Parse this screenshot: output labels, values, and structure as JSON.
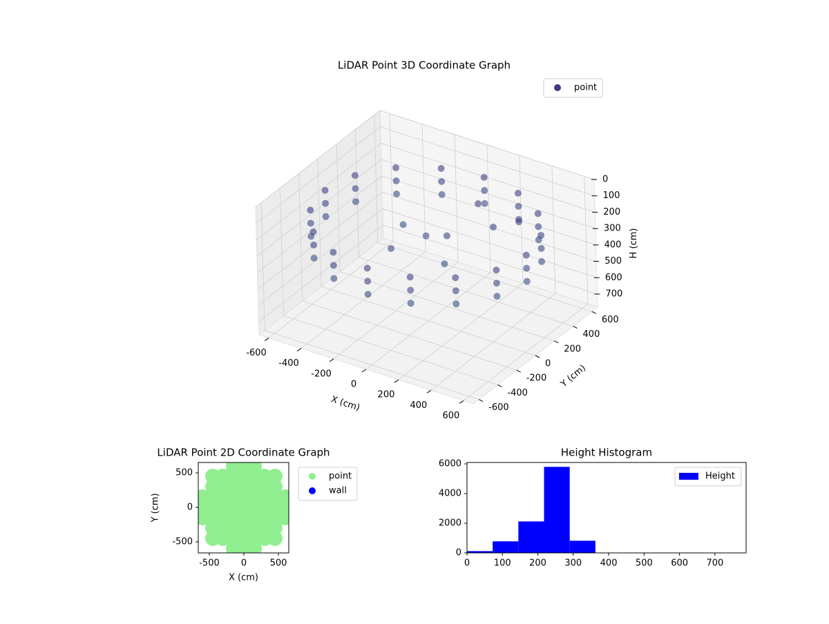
{
  "chart_data": [
    {
      "type": "scatter3d",
      "title": "LiDAR Point 3D Coordinate Graph",
      "xlabel": "X (cm)",
      "ylabel": "Y (cm)",
      "zlabel": "H (cm)",
      "xlim": [
        -660,
        660
      ],
      "ylim": [
        -660,
        660
      ],
      "zlim": [
        0,
        780
      ],
      "z_inverted": true,
      "xticks": [
        -600,
        -400,
        -200,
        0,
        200,
        400,
        600
      ],
      "yticks": [
        -600,
        -400,
        -200,
        0,
        200,
        400,
        600
      ],
      "zticks": [
        0,
        100,
        200,
        300,
        400,
        500,
        600,
        700
      ],
      "color_range": [
        "#46307e",
        "#2a788e"
      ],
      "legend": "upper right",
      "series": [
        {
          "name": "point",
          "color": "#453781",
          "x": [
            620,
            573,
            438,
            237,
            0,
            -237,
            -438,
            -573,
            -620,
            -573,
            -438,
            -237,
            0,
            237,
            438,
            573,
            620,
            573,
            438,
            237,
            0,
            -237,
            -438,
            -573,
            -620,
            -573,
            -438,
            -237,
            0,
            237,
            438,
            573,
            620,
            573,
            438,
            237,
            0,
            -237,
            -438,
            -573,
            -620,
            -573,
            -438,
            -237,
            0,
            237,
            438,
            573,
            100,
            -200,
            200,
            300,
            0,
            -100,
            400,
            150
          ],
          "y": [
            0,
            237,
            438,
            573,
            620,
            573,
            438,
            237,
            0,
            -237,
            -438,
            -573,
            -620,
            -573,
            -438,
            -237,
            0,
            237,
            438,
            573,
            620,
            573,
            438,
            237,
            0,
            -237,
            -438,
            -573,
            -620,
            -573,
            -438,
            -237,
            0,
            237,
            438,
            573,
            620,
            573,
            438,
            237,
            0,
            -237,
            -438,
            -573,
            -620,
            -573,
            -438,
            -237,
            50,
            100,
            -150,
            200,
            0,
            -200,
            300,
            300
          ],
          "z": [
            180,
            180,
            180,
            180,
            180,
            180,
            180,
            180,
            180,
            180,
            180,
            180,
            180,
            180,
            180,
            180,
            260,
            260,
            260,
            260,
            260,
            260,
            260,
            260,
            260,
            260,
            260,
            260,
            260,
            260,
            260,
            260,
            340,
            340,
            340,
            340,
            340,
            340,
            340,
            340,
            340,
            340,
            340,
            340,
            340,
            340,
            340,
            340,
            250,
            300,
            300,
            200,
            260,
            280,
            180,
            150
          ]
        }
      ]
    },
    {
      "type": "scatter",
      "title": "LiDAR Point 2D Coordinate Graph",
      "xlabel": "X (cm)",
      "ylabel": "Y (cm)",
      "xlim": [
        -660,
        650
      ],
      "ylim": [
        -660,
        650
      ],
      "xticks": [
        -500,
        0,
        500
      ],
      "yticks": [
        -500,
        0,
        500
      ],
      "legend": "outside right",
      "series": [
        {
          "name": "point",
          "color": "#90ee90",
          "x": [
            -150,
            0,
            150,
            -450,
            -300,
            -150,
            0,
            150,
            300,
            450,
            -450,
            -300,
            -150,
            0,
            150,
            300,
            450,
            -600,
            -450,
            -300,
            -150,
            0,
            150,
            300,
            450,
            600,
            -600,
            -450,
            -300,
            -150,
            0,
            150,
            300,
            450,
            600,
            -600,
            -450,
            -300,
            -150,
            0,
            150,
            300,
            450,
            600,
            -450,
            -300,
            -150,
            0,
            150,
            300,
            450,
            -450,
            -300,
            -150,
            0,
            150,
            300,
            450,
            -150,
            0,
            150
          ],
          "y": [
            600,
            600,
            600,
            450,
            450,
            450,
            450,
            450,
            450,
            450,
            300,
            300,
            300,
            300,
            300,
            300,
            300,
            150,
            150,
            150,
            150,
            150,
            150,
            150,
            150,
            150,
            0,
            0,
            0,
            0,
            0,
            0,
            0,
            0,
            0,
            -150,
            -150,
            -150,
            -150,
            -150,
            -150,
            -150,
            -150,
            -150,
            -300,
            -300,
            -300,
            -300,
            -300,
            -300,
            -300,
            -450,
            -450,
            -450,
            -450,
            -450,
            -450,
            -450,
            -600,
            -600,
            -600
          ]
        },
        {
          "name": "wall",
          "color": "#0000ff",
          "x": [],
          "y": []
        }
      ]
    },
    {
      "type": "histogram",
      "title": "Height Histogram",
      "xlim": [
        0,
        788
      ],
      "ylim": [
        0,
        6094
      ],
      "xticks": [
        0,
        100,
        200,
        300,
        400,
        500,
        600,
        700
      ],
      "yticks": [
        0,
        2000,
        4000,
        6000
      ],
      "bins": [
        0,
        72.5,
        145,
        217.5,
        290,
        362.5,
        435,
        507.5,
        580,
        652.5,
        725
      ],
      "legend": "upper right",
      "series": [
        {
          "name": "Height",
          "color": "#0000ff",
          "values": [
            120,
            780,
            2120,
            5800,
            820,
            10,
            5,
            5,
            5,
            15
          ]
        }
      ]
    }
  ]
}
